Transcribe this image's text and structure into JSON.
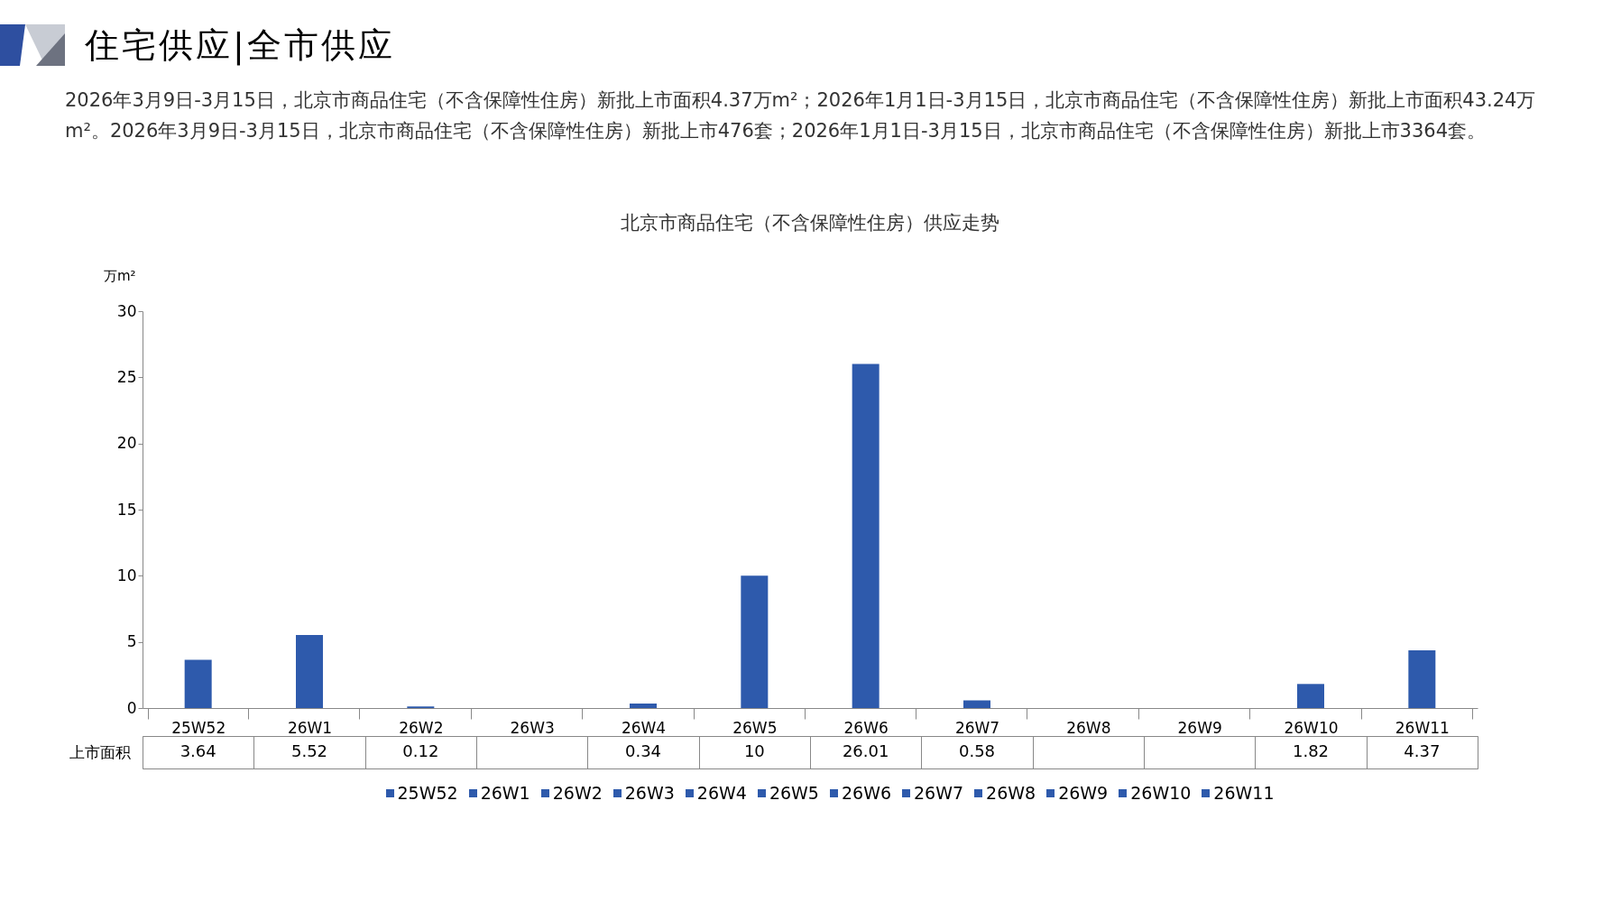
{
  "chart_data": {
    "type": "bar",
    "title": "北京市商品住宅（不含保障性住房）供应走势",
    "ylabel": "万m²",
    "annotations": [
      "住宅供应|全市供应",
      "2026年3月9日-3月15日，北京市商品住宅（不含保障性住房）新批上市面积4.37万m²；2026年1月1日-3月15日，北京市商品住宅（不含保障性住房）新批上市面积43.24万m²。2026年3月9日-3月15日，北京市商品住宅（不含保障性住房）新批上市476套；2026年1月1日-3月15日，北京市商品住宅（不含保障性住房）新批上市3364套。"
    ],
    "categories": [
      "25W52",
      "26W1",
      "26W2",
      "26W3",
      "26W4",
      "26W5",
      "26W6",
      "26W7",
      "26W8",
      "26W9",
      "26W10",
      "26W11"
    ],
    "series": [
      {
        "name": "上市面积",
        "color": "#2e5aac",
        "values": [
          3.64,
          5.52,
          0.12,
          null,
          0.34,
          10,
          26.01,
          0.58,
          null,
          null,
          1.82,
          4.37
        ]
      }
    ],
    "ylim": [
      0,
      30
    ],
    "yticks": [
      0,
      5,
      10,
      15,
      20,
      25,
      30
    ],
    "grid": false,
    "legend": "bottom",
    "data_labels": true
  }
}
